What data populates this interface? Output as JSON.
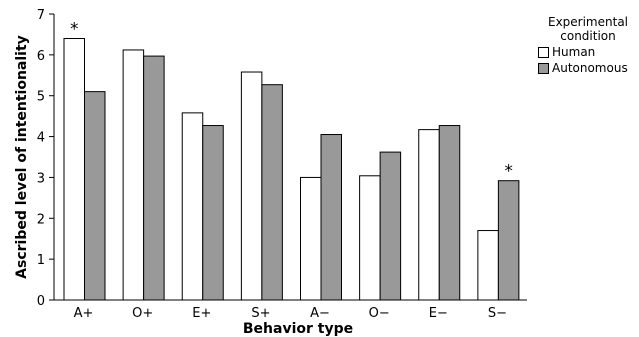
{
  "chart_data": {
    "type": "bar",
    "categories": [
      "A+",
      "O+",
      "E+",
      "S+",
      "A−",
      "O−",
      "E−",
      "S−"
    ],
    "series": [
      {
        "name": "Human",
        "values": [
          6.4,
          6.12,
          4.58,
          5.58,
          3.0,
          3.04,
          4.17,
          1.7
        ],
        "color": "#ffffff"
      },
      {
        "name": "Autonomous",
        "values": [
          5.1,
          5.97,
          4.27,
          5.27,
          4.05,
          3.62,
          4.27,
          2.92
        ],
        "color": "#999999"
      }
    ],
    "xlabel": "Behavior type",
    "ylabel": "Ascribed level of intentionality",
    "ylim": [
      0,
      7
    ],
    "yticks": [
      "0",
      "1",
      "2",
      "3",
      "4",
      "5",
      "6",
      "7"
    ],
    "grid": false,
    "legend_title_lines": [
      "Experimental",
      "condition"
    ],
    "legend_position": "top-right",
    "annotations": [
      {
        "category_index": 0,
        "text": "*"
      },
      {
        "category_index": 7,
        "text": "*"
      }
    ]
  }
}
